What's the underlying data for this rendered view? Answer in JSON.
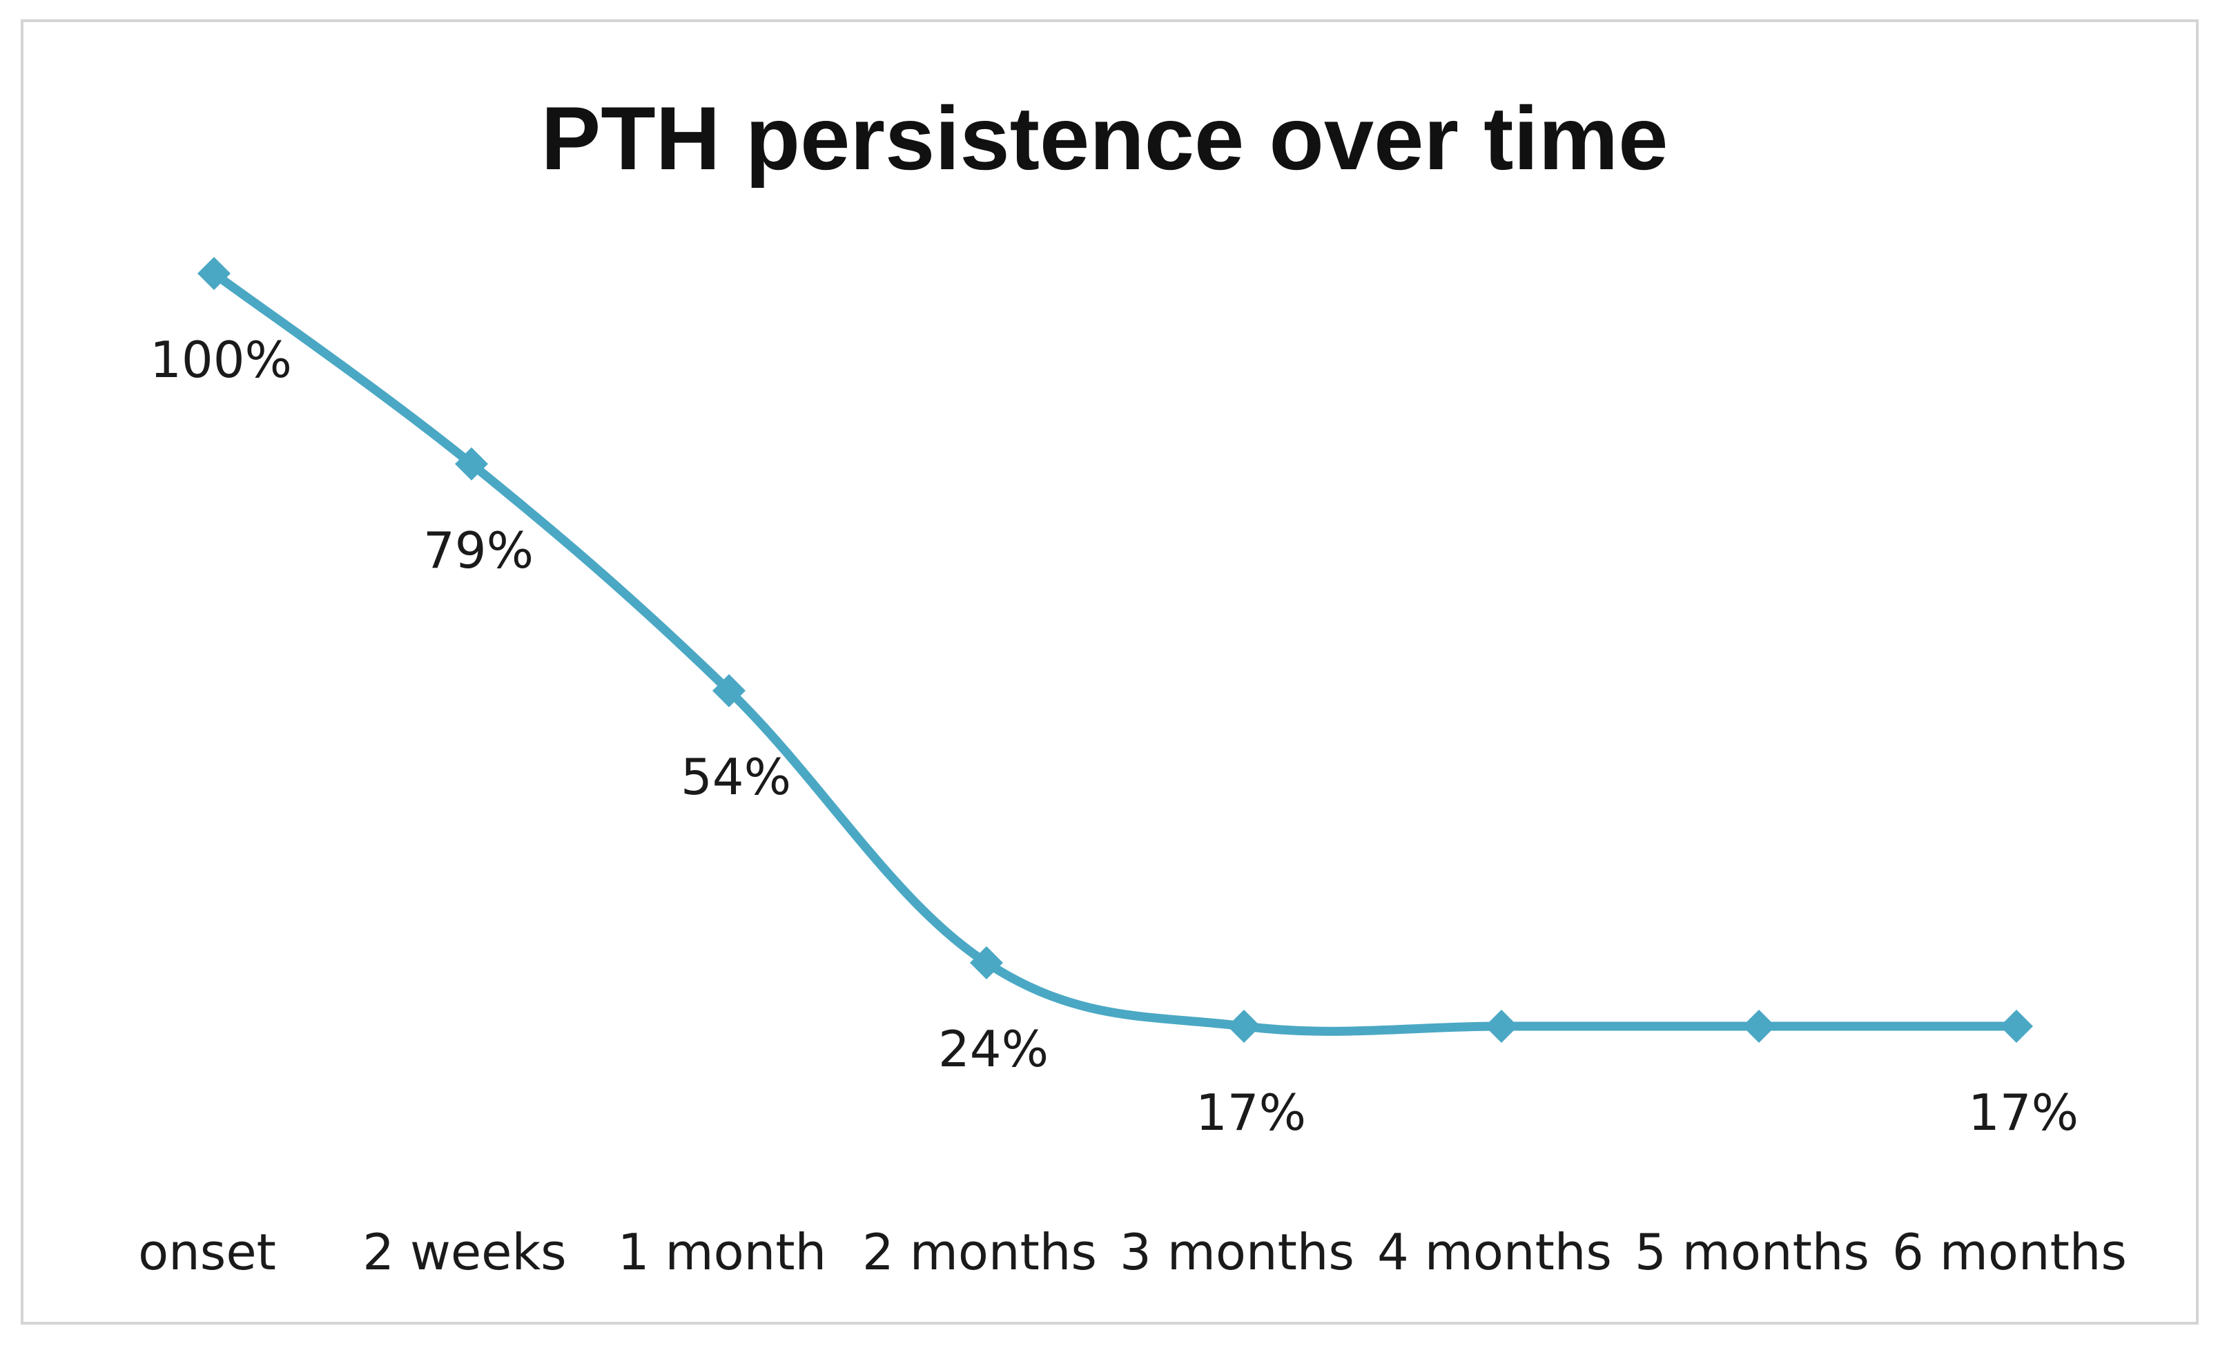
{
  "chart_data": {
    "type": "line",
    "title": "PTH persistence over time",
    "xlabel": "",
    "ylabel": "",
    "categories": [
      "onset",
      "2 weeks",
      "1 month",
      "2 months",
      "3 months",
      "4 months",
      "5 months",
      "6 months"
    ],
    "series": [
      {
        "values": [
          100,
          79,
          54,
          24,
          17,
          17,
          17,
          17
        ],
        "color": "#4aa8c4"
      }
    ],
    "data_labels": [
      "100%",
      "79%",
      "54%",
      "24%",
      "17%",
      "",
      "",
      "17%"
    ],
    "ylim": [
      0,
      130
    ],
    "grid": false,
    "legend": "none",
    "line_style": "smoothed",
    "marker": "diamond"
  }
}
